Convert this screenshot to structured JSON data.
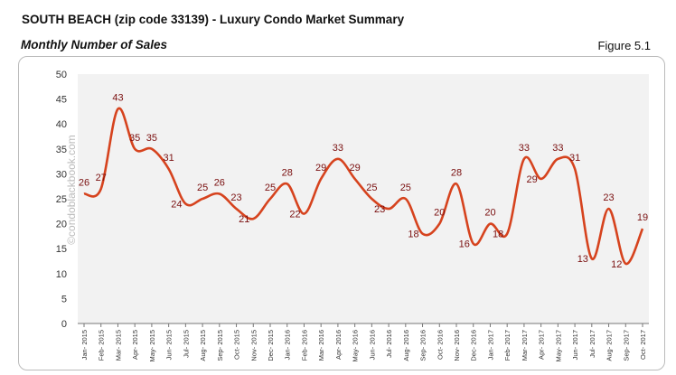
{
  "header": {
    "title": "SOUTH BEACH (zip code 33139) - Luxury Condo Market Summary",
    "subtitle": "Monthly Number of Sales",
    "figure": "Figure 5.1"
  },
  "watermark": "©condoblackbook.com",
  "chart_data": {
    "type": "line",
    "categories": [
      "Jan- 2015",
      "Feb- 2015",
      "Mar- 2015",
      "Apr- 2015",
      "May- 2015",
      "Jun- 2015",
      "Jul- 2015",
      "Aug- 2015",
      "Sep- 2015",
      "Oct- 2015",
      "Nov- 2015",
      "Dec- 2015",
      "Jan- 2016",
      "Feb- 2016",
      "Mar- 2016",
      "Apr- 2016",
      "May- 2016",
      "Jun- 2016",
      "Jul- 2016",
      "Aug- 2016",
      "Sep- 2016",
      "Oct- 2016",
      "Nov- 2016",
      "Dec- 2016",
      "Jan- 2017",
      "Feb- 2017",
      "Mar- 2017",
      "Apr- 2017",
      "May- 2017",
      "Jun- 2017",
      "Jul- 2017",
      "Aug- 2017",
      "Sep- 2017",
      "Oct- 2017"
    ],
    "values": [
      26,
      27,
      43,
      35,
      35,
      31,
      24,
      25,
      26,
      23,
      21,
      25,
      28,
      22,
      29,
      33,
      29,
      25,
      23,
      25,
      18,
      20,
      28,
      16,
      20,
      18,
      33,
      29,
      33,
      31,
      13,
      23,
      12,
      19
    ],
    "ylim": [
      0,
      50
    ],
    "yticks": [
      0,
      5,
      10,
      15,
      20,
      25,
      30,
      35,
      40,
      45,
      50
    ],
    "grid": false,
    "smooth": true,
    "colors": {
      "line": "#d6431e",
      "label": "#7a0f0f",
      "plot_bg": "#f2f2f2"
    }
  }
}
